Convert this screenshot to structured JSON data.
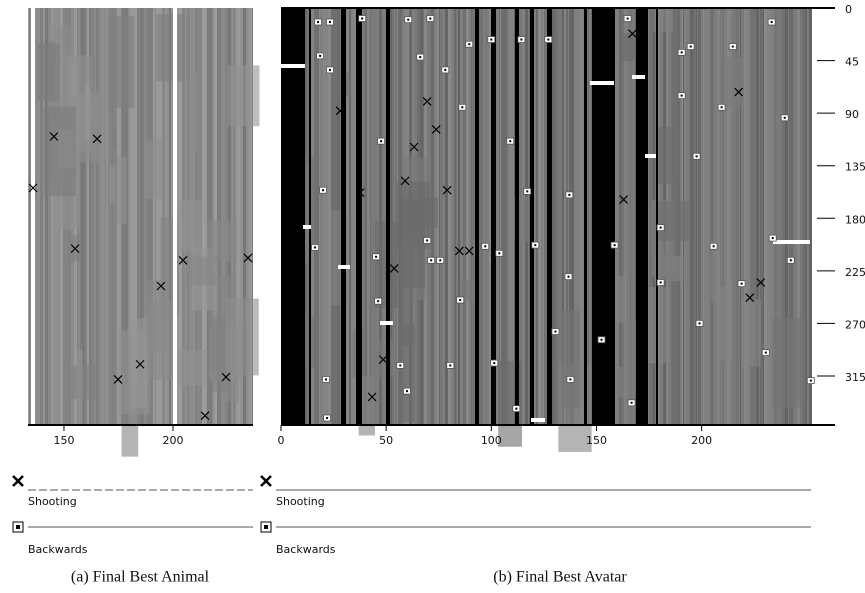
{
  "chart_data": [
    {
      "type": "scatter",
      "caption": "(a) Final Best Animal",
      "xlim": [
        133.5,
        236.7
      ],
      "xticks": [
        150,
        200
      ],
      "ylim": [
        0,
        357
      ],
      "series": [
        {
          "name": "Shooting",
          "marker": "cross",
          "color": "#000000",
          "x": [
            135.8,
            145.4,
            165.2,
            155.1,
            174.8,
            184.9,
            194.5,
            204.6,
            214.7,
            224.3,
            234.4
          ],
          "y": [
            154,
            110,
            112,
            206,
            318,
            305,
            238,
            216,
            349,
            316,
            214
          ]
        },
        {
          "name": "Backwards",
          "marker": "square",
          "color": "#000000",
          "x": [],
          "y": []
        }
      ]
    },
    {
      "type": "scatter",
      "caption": "(b) Final Best Avatar",
      "xlim": [
        0,
        252
      ],
      "xticks": [
        0,
        50,
        100,
        150,
        200
      ],
      "ylim": [
        0,
        357
      ],
      "yticks": [
        0,
        45,
        90,
        135,
        180,
        225,
        270,
        315
      ],
      "series": [
        {
          "name": "Shooting",
          "marker": "cross",
          "color": "#000000",
          "x": [
            28.1,
            69.5,
            73.8,
            63.3,
            59,
            37.6,
            79,
            84.8,
            89.5,
            53.8,
            43.3,
            48.6,
            167.1,
            217.6,
            162.9,
            222.9,
            228.1
          ],
          "y": [
            88,
            80,
            104,
            119,
            148,
            158,
            156,
            208,
            208,
            223,
            333,
            301,
            22,
            72,
            164,
            248,
            235
          ]
        },
        {
          "name": "Backwards",
          "marker": "square",
          "color": "#000000",
          "x": [
            17.6,
            23.3,
            38.6,
            60.5,
            71,
            164.8,
            233.3,
            89.5,
            100,
            114.3,
            127.1,
            18.6,
            23.3,
            66.2,
            78.1,
            86.2,
            47.6,
            109,
            20,
            117.1,
            137.1,
            69.5,
            97.1,
            120.9,
            16.2,
            45.2,
            71.4,
            75.7,
            103.8,
            136.7,
            46.2,
            85.2,
            130.5,
            101.4,
            56.7,
            80.5,
            21.4,
            137.6,
            59.9,
            21.9,
            111.9,
            194.8,
            190.5,
            214.8,
            190.5,
            239.5,
            197.6,
            209.5,
            180.5,
            205.7,
            233.8,
            180.5,
            199,
            230.5,
            251.9,
            166.7,
            219,
            242.4,
            158.6,
            152.4
          ],
          "y": [
            12,
            12,
            9,
            10,
            9,
            9,
            12,
            31,
            27,
            27,
            27,
            41,
            53,
            42,
            53,
            85,
            114,
            114,
            156,
            157,
            160,
            199,
            204,
            203,
            205,
            213,
            216,
            216,
            210,
            230,
            251,
            250,
            277,
            304,
            306,
            306,
            318,
            318,
            328,
            351,
            343,
            33,
            38,
            33,
            75,
            94,
            127,
            85,
            188,
            204,
            197,
            235,
            270,
            295,
            319,
            338,
            236,
            216,
            203,
            284
          ]
        }
      ]
    }
  ]
}
